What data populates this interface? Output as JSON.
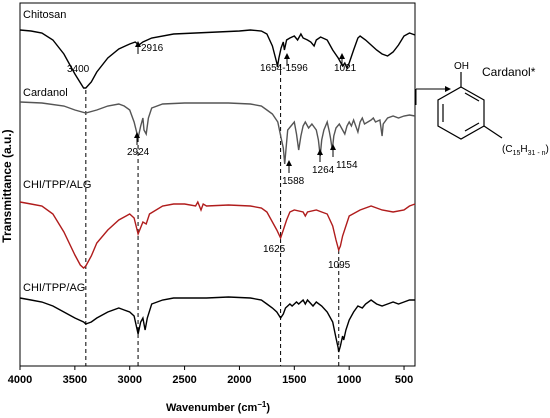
{
  "chart_data": {
    "type": "line",
    "xlabel": "Wavenumber (cm",
    "xlabel_sup": "−1",
    "xlabel_close": ")",
    "ylabel": "Transmittance (a.u.)",
    "xlim": [
      4000,
      400
    ],
    "x_ticks": [
      4000,
      3500,
      3000,
      2500,
      2000,
      1500,
      1000,
      500
    ],
    "x_tick_labels": [
      "4000",
      "3500",
      "3000",
      "2500",
      "2000",
      "1500",
      "1000",
      "500"
    ],
    "grid": false,
    "reference_lines": [
      3400,
      2924,
      1625,
      1095
    ],
    "series": [
      {
        "name": "Chitosan",
        "color": "#000000",
        "points": [
          [
            4000,
            30
          ],
          [
            3900,
            31
          ],
          [
            3800,
            33
          ],
          [
            3700,
            40
          ],
          [
            3600,
            54
          ],
          [
            3500,
            74
          ],
          [
            3420,
            88
          ],
          [
            3400,
            88
          ],
          [
            3350,
            82
          ],
          [
            3300,
            72
          ],
          [
            3200,
            58
          ],
          [
            3100,
            49
          ],
          [
            3000,
            44
          ],
          [
            2950,
            42
          ],
          [
            2916,
            45
          ],
          [
            2880,
            42
          ],
          [
            2800,
            38
          ],
          [
            2600,
            34
          ],
          [
            2400,
            33
          ],
          [
            2200,
            32
          ],
          [
            2000,
            31
          ],
          [
            1900,
            30
          ],
          [
            1800,
            31
          ],
          [
            1750,
            34
          ],
          [
            1700,
            46
          ],
          [
            1660,
            63
          ],
          [
            1654,
            67
          ],
          [
            1640,
            58
          ],
          [
            1620,
            48
          ],
          [
            1600,
            42
          ],
          [
            1590,
            50
          ],
          [
            1570,
            40
          ],
          [
            1540,
            38
          ],
          [
            1500,
            36
          ],
          [
            1470,
            40
          ],
          [
            1440,
            34
          ],
          [
            1420,
            38
          ],
          [
            1380,
            40
          ],
          [
            1350,
            42
          ],
          [
            1320,
            46
          ],
          [
            1300,
            40
          ],
          [
            1260,
            37
          ],
          [
            1200,
            40
          ],
          [
            1150,
            50
          ],
          [
            1100,
            58
          ],
          [
            1060,
            66
          ],
          [
            1040,
            63
          ],
          [
            1021,
            68
          ],
          [
            1000,
            63
          ],
          [
            960,
            50
          ],
          [
            920,
            38
          ],
          [
            900,
            36
          ],
          [
            850,
            40
          ],
          [
            800,
            45
          ],
          [
            750,
            50
          ],
          [
            700,
            54
          ],
          [
            650,
            56
          ],
          [
            600,
            52
          ],
          [
            550,
            45
          ],
          [
            500,
            36
          ],
          [
            450,
            33
          ],
          [
            400,
            35
          ]
        ]
      },
      {
        "name": "Cardanol",
        "color": "#555555",
        "points": [
          [
            4000,
            102
          ],
          [
            3800,
            103
          ],
          [
            3600,
            106
          ],
          [
            3500,
            110
          ],
          [
            3400,
            113
          ],
          [
            3300,
            110
          ],
          [
            3200,
            106
          ],
          [
            3100,
            104
          ],
          [
            3050,
            106
          ],
          [
            3000,
            110
          ],
          [
            2960,
            122
          ],
          [
            2924,
            138
          ],
          [
            2900,
            126
          ],
          [
            2880,
            118
          ],
          [
            2870,
            130
          ],
          [
            2850,
            134
          ],
          [
            2830,
            118
          ],
          [
            2800,
            108
          ],
          [
            2700,
            104
          ],
          [
            2500,
            103
          ],
          [
            2300,
            103
          ],
          [
            2100,
            103
          ],
          [
            1900,
            104
          ],
          [
            1800,
            106
          ],
          [
            1750,
            110
          ],
          [
            1700,
            114
          ],
          [
            1650,
            122
          ],
          [
            1620,
            138
          ],
          [
            1600,
            148
          ],
          [
            1588,
            164
          ],
          [
            1575,
            148
          ],
          [
            1560,
            130
          ],
          [
            1530,
            126
          ],
          [
            1500,
            122
          ],
          [
            1480,
            134
          ],
          [
            1460,
            150
          ],
          [
            1440,
            136
          ],
          [
            1420,
            126
          ],
          [
            1400,
            122
          ],
          [
            1370,
            128
          ],
          [
            1340,
            124
          ],
          [
            1300,
            130
          ],
          [
            1280,
            140
          ],
          [
            1264,
            156
          ],
          [
            1250,
            140
          ],
          [
            1230,
            130
          ],
          [
            1200,
            122
          ],
          [
            1180,
            132
          ],
          [
            1170,
            138
          ],
          [
            1154,
            150
          ],
          [
            1140,
            136
          ],
          [
            1120,
            128
          ],
          [
            1090,
            124
          ],
          [
            1060,
            130
          ],
          [
            1040,
            134
          ],
          [
            1020,
            126
          ],
          [
            1000,
            122
          ],
          [
            980,
            126
          ],
          [
            960,
            120
          ],
          [
            920,
            132
          ],
          [
            900,
            122
          ],
          [
            880,
            118
          ],
          [
            860,
            124
          ],
          [
            800,
            120
          ],
          [
            780,
            118
          ],
          [
            760,
            122
          ],
          [
            720,
            120
          ],
          [
            700,
            136
          ],
          [
            690,
            124
          ],
          [
            650,
            118
          ],
          [
            600,
            116
          ],
          [
            550,
            118
          ],
          [
            500,
            116
          ],
          [
            450,
            115
          ],
          [
            400,
            116
          ]
        ]
      },
      {
        "name": "CHI/TPP/ALG",
        "color": "#b01c1c",
        "points": [
          [
            4000,
            202
          ],
          [
            3900,
            204
          ],
          [
            3800,
            206
          ],
          [
            3700,
            214
          ],
          [
            3600,
            232
          ],
          [
            3500,
            255
          ],
          [
            3450,
            265
          ],
          [
            3420,
            268
          ],
          [
            3400,
            266
          ],
          [
            3350,
            256
          ],
          [
            3300,
            243
          ],
          [
            3200,
            230
          ],
          [
            3100,
            220
          ],
          [
            3000,
            214
          ],
          [
            2960,
            218
          ],
          [
            2924,
            234
          ],
          [
            2880,
            222
          ],
          [
            2850,
            224
          ],
          [
            2820,
            214
          ],
          [
            2700,
            206
          ],
          [
            2600,
            204
          ],
          [
            2500,
            204
          ],
          [
            2400,
            206
          ],
          [
            2380,
            202
          ],
          [
            2350,
            210
          ],
          [
            2330,
            204
          ],
          [
            2300,
            206
          ],
          [
            2100,
            205
          ],
          [
            1900,
            206
          ],
          [
            1800,
            208
          ],
          [
            1750,
            212
          ],
          [
            1700,
            222
          ],
          [
            1660,
            230
          ],
          [
            1625,
            238
          ],
          [
            1600,
            230
          ],
          [
            1570,
            220
          ],
          [
            1540,
            212
          ],
          [
            1500,
            210
          ],
          [
            1420,
            212
          ],
          [
            1400,
            216
          ],
          [
            1380,
            212
          ],
          [
            1300,
            210
          ],
          [
            1250,
            212
          ],
          [
            1200,
            214
          ],
          [
            1150,
            226
          ],
          [
            1120,
            240
          ],
          [
            1095,
            250
          ],
          [
            1080,
            246
          ],
          [
            1060,
            236
          ],
          [
            1030,
            226
          ],
          [
            1000,
            216
          ],
          [
            900,
            210
          ],
          [
            800,
            206
          ],
          [
            700,
            210
          ],
          [
            600,
            212
          ],
          [
            500,
            210
          ],
          [
            450,
            206
          ],
          [
            400,
            204
          ]
        ]
      },
      {
        "name": "CHI/TPP/AG",
        "color": "#000000",
        "points": [
          [
            4000,
            298
          ],
          [
            3900,
            300
          ],
          [
            3800,
            302
          ],
          [
            3700,
            306
          ],
          [
            3600,
            312
          ],
          [
            3500,
            318
          ],
          [
            3420,
            322
          ],
          [
            3400,
            324
          ],
          [
            3350,
            322
          ],
          [
            3300,
            318
          ],
          [
            3200,
            312
          ],
          [
            3100,
            308
          ],
          [
            3050,
            310
          ],
          [
            3000,
            312
          ],
          [
            2960,
            316
          ],
          [
            2924,
            334
          ],
          [
            2900,
            322
          ],
          [
            2880,
            318
          ],
          [
            2860,
            330
          ],
          [
            2840,
            318
          ],
          [
            2800,
            304
          ],
          [
            2700,
            300
          ],
          [
            2600,
            298
          ],
          [
            2500,
            298
          ],
          [
            2300,
            298
          ],
          [
            2100,
            297
          ],
          [
            1900,
            298
          ],
          [
            1800,
            300
          ],
          [
            1750,
            304
          ],
          [
            1700,
            308
          ],
          [
            1660,
            312
          ],
          [
            1625,
            318
          ],
          [
            1600,
            314
          ],
          [
            1580,
            308
          ],
          [
            1540,
            304
          ],
          [
            1520,
            306
          ],
          [
            1480,
            302
          ],
          [
            1460,
            304
          ],
          [
            1420,
            300
          ],
          [
            1400,
            304
          ],
          [
            1380,
            300
          ],
          [
            1330,
            306
          ],
          [
            1300,
            302
          ],
          [
            1250,
            306
          ],
          [
            1200,
            312
          ],
          [
            1150,
            322
          ],
          [
            1120,
            338
          ],
          [
            1100,
            348
          ],
          [
            1095,
            352
          ],
          [
            1080,
            346
          ],
          [
            1060,
            336
          ],
          [
            1050,
            340
          ],
          [
            1030,
            330
          ],
          [
            1000,
            320
          ],
          [
            960,
            312
          ],
          [
            920,
            306
          ],
          [
            880,
            308
          ],
          [
            850,
            304
          ],
          [
            800,
            300
          ],
          [
            750,
            304
          ],
          [
            700,
            306
          ],
          [
            650,
            304
          ],
          [
            600,
            302
          ],
          [
            550,
            304
          ],
          [
            500,
            302
          ],
          [
            450,
            300
          ],
          [
            400,
            300
          ]
        ]
      }
    ],
    "annotations": [
      {
        "text": "3400",
        "x": 3400,
        "arrow": false
      },
      {
        "text": "2916",
        "x": 2916,
        "arrow": true
      },
      {
        "text": "1654-1596",
        "x": 1625,
        "arrow": true
      },
      {
        "text": "1021",
        "x": 1021,
        "arrow": true
      },
      {
        "text": "2924",
        "x": 2924,
        "arrow": true
      },
      {
        "text": "1588",
        "x": 1588,
        "arrow": true
      },
      {
        "text": "1264",
        "x": 1264,
        "arrow": true
      },
      {
        "text": "1154",
        "x": 1154,
        "arrow": true
      },
      {
        "text": "1625",
        "x": 1625,
        "arrow": false
      },
      {
        "text": "1095",
        "x": 1095,
        "arrow": false
      }
    ]
  },
  "inset": {
    "title": "Cardanol*",
    "oh_label": "OH",
    "substituent": "(C",
    "sub_main": "15",
    "sub_h": "H",
    "sub_count": "31 - n",
    "sub_close": ")"
  }
}
